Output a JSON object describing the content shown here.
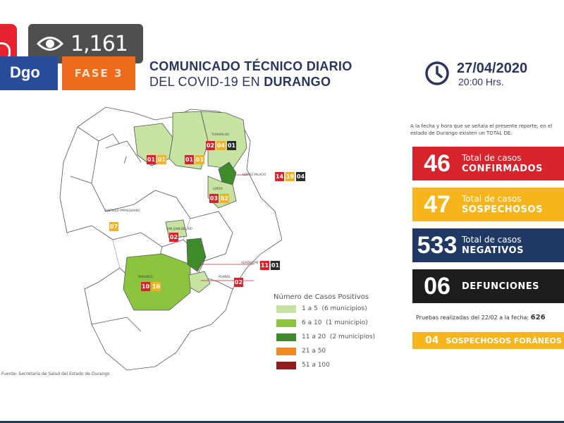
{
  "overlay": {
    "views": "1,161"
  },
  "header": {
    "logo_text": "Dgo",
    "fase_label": "FASE 3",
    "title_line1": "COMUNICADO TÉCNICO DIARIO",
    "title_line2_prefix": "DEL COVID-19 EN ",
    "title_line2_state": "DURANGO",
    "date": "27/04/2020",
    "time": "20:00 Hrs."
  },
  "summary": {
    "intro": "A la fecha y hora que se señala el presente reporte, en el estado de Durango existen un TOTAL DE:",
    "stats": [
      {
        "value": "46",
        "line1": "Total de casos",
        "line2": "CONFIRMADOS",
        "color": "#d7232b"
      },
      {
        "value": "47",
        "line1": "Total de casos",
        "line2": "SOSPECHOSOS",
        "color": "#f7b51b"
      },
      {
        "value": "533",
        "line1": "Total de casos",
        "line2": "NEGATIVOS",
        "color": "#1f3864"
      },
      {
        "value": "06",
        "line1": "",
        "line2": "DEFUNCIONES",
        "color": "#1d1d1d"
      }
    ],
    "pruebas_label": "Pruebas realizadas del 22/02 a la fecha:",
    "pruebas_value": "626",
    "foraneos_value": "04",
    "foraneos_label": "SOSPECHOSOS FORÁNEOS"
  },
  "legend": {
    "title": "Número de Casos Positivos",
    "items": [
      {
        "range": "1 a 5",
        "note": "(6 municipios)",
        "color": "#c6e3a1"
      },
      {
        "range": "6 a 10",
        "note": "(1 municipio)",
        "color": "#8cc43f"
      },
      {
        "range": "11 a 20",
        "note": "(2 municipios)",
        "color": "#3f8a2a"
      },
      {
        "range": "21 a 50",
        "note": "",
        "color": "#f08a24"
      },
      {
        "range": "51 a 100",
        "note": "",
        "color": "#8f1d1d"
      }
    ]
  },
  "map": {
    "labels": {
      "tlahualilo": "TLAHUALILO",
      "gomez": "GÓMEZ PALACIO",
      "lerdo": "LERDO",
      "santiago": "SANTIAGO PAPASQUIARO",
      "sanjuan": "SAN JUAN DEL RÍO",
      "durango": "DURANGO",
      "poanas": "POANAS",
      "pvictoria": "GUADALUPE VICTORIA"
    },
    "badges": {
      "tlahualilo": [
        "02",
        "04",
        "01"
      ],
      "tepehuanes": [
        "01",
        "01"
      ],
      "mapimi": [
        "01",
        "01"
      ],
      "gomez": [
        "14",
        "19",
        "04"
      ],
      "lerdo": [
        "03",
        "02"
      ],
      "santiago": [
        "07"
      ],
      "sanjuan": [
        "02"
      ],
      "durango": [
        "10",
        "16"
      ],
      "pvictoria": [
        "11",
        "01"
      ],
      "poanas": [
        "02"
      ]
    }
  },
  "footer": {
    "source": "Fuente: Secretaría de Salud del Estado de Durango"
  }
}
